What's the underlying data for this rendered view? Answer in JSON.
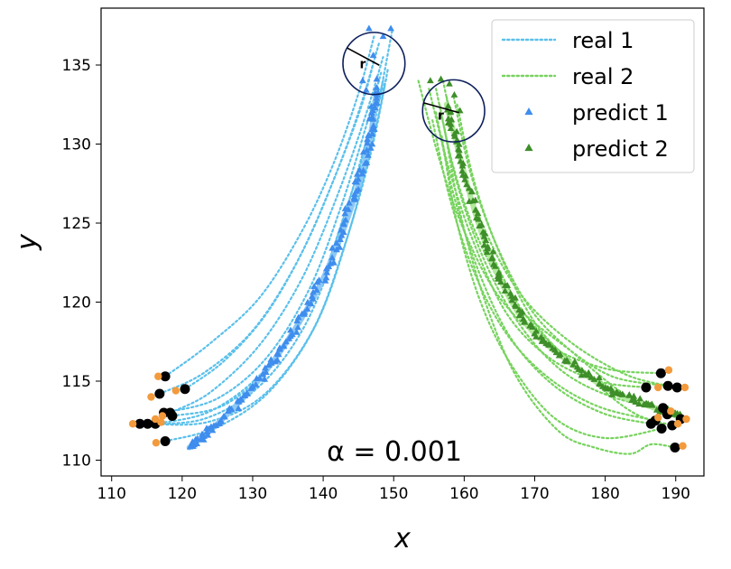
{
  "chart_data": {
    "type": "scatter",
    "title": "",
    "xlabel": "x",
    "ylabel": "y",
    "xlim": [
      108.5,
      194
    ],
    "ylim": [
      109,
      138.6
    ],
    "xticks": [
      110,
      120,
      130,
      140,
      150,
      160,
      170,
      180,
      190
    ],
    "yticks": [
      110,
      115,
      120,
      125,
      130,
      135
    ],
    "grid": false,
    "legend_position": "top-right",
    "annotation": "α = 0.001",
    "radius_label": "r",
    "colors": {
      "real1": "#5bc0eb",
      "real2": "#77d35e",
      "predict1": "#3f8ded",
      "predict2": "#3e8e2a",
      "mean1": "#8ec9f5",
      "mean2": "#b2ea9c",
      "circle": "#0d1f5c",
      "start_point": "#000000",
      "start_offset": "#f39a3c"
    },
    "legend": [
      {
        "label": "real 1",
        "kind": "dotted-line",
        "color": "#5bc0eb"
      },
      {
        "label": "real 2",
        "kind": "dotted-line",
        "color": "#77d35e"
      },
      {
        "label": "predict 1",
        "kind": "triangle",
        "color": "#3f8ded"
      },
      {
        "label": "predict 2",
        "kind": "triangle",
        "color": "#3e8e2a"
      }
    ],
    "circles": [
      {
        "center": [
          147.2,
          135.1
        ],
        "radius": 4.4
      },
      {
        "center": [
          158.5,
          132.1
        ],
        "radius": 4.4
      }
    ],
    "group1": {
      "mean_path": [
        [
          121,
          110.8
        ],
        [
          125,
          112.3
        ],
        [
          130,
          114.6
        ],
        [
          135,
          117.6
        ],
        [
          140,
          121.5
        ],
        [
          144,
          126
        ],
        [
          146.5,
          130
        ],
        [
          147.6,
          133.5
        ]
      ],
      "start_points": [
        [
          117.6,
          115.3
        ],
        [
          120.4,
          114.5
        ],
        [
          116.8,
          114.2
        ],
        [
          118.3,
          113.0
        ],
        [
          117.4,
          113.0
        ],
        [
          118.6,
          112.8
        ],
        [
          116.2,
          112.3
        ],
        [
          114.0,
          112.3
        ],
        [
          115.1,
          112.3
        ],
        [
          117.6,
          111.2
        ]
      ],
      "start_offsets": [
        [
          116.6,
          115.3
        ],
        [
          119.1,
          114.4
        ],
        [
          115.6,
          114.0
        ],
        [
          117.2,
          112.8
        ],
        [
          116.2,
          112.6
        ],
        [
          113.0,
          112.3
        ],
        [
          117.0,
          112.4
        ],
        [
          116.3,
          111.1
        ]
      ],
      "real_paths": [
        [
          [
            117.6,
            115.3
          ],
          [
            124,
            117.4
          ],
          [
            131,
            120.3
          ],
          [
            137,
            124.5
          ],
          [
            141.5,
            128.8
          ],
          [
            145,
            133.2
          ],
          [
            147.2,
            136.8
          ]
        ],
        [
          [
            120.4,
            114.5
          ],
          [
            126,
            116.3
          ],
          [
            132,
            119.3
          ],
          [
            137.5,
            123.6
          ],
          [
            142,
            128.3
          ],
          [
            145.5,
            132.5
          ],
          [
            147.5,
            135.8
          ]
        ],
        [
          [
            116.8,
            114.2
          ],
          [
            123,
            115.5
          ],
          [
            130,
            118.2
          ],
          [
            136,
            122.3
          ],
          [
            141,
            127.2
          ],
          [
            145,
            132
          ],
          [
            148,
            136.5
          ]
        ],
        [
          [
            118.3,
            113.0
          ],
          [
            124,
            114.3
          ],
          [
            131,
            117.3
          ],
          [
            137,
            121.5
          ],
          [
            141.8,
            126.5
          ],
          [
            145.8,
            131.5
          ],
          [
            148.5,
            135.5
          ]
        ],
        [
          [
            117.4,
            113.0
          ],
          [
            125,
            113.9
          ],
          [
            132,
            116.5
          ],
          [
            138,
            120.8
          ],
          [
            142.5,
            126
          ],
          [
            146,
            131
          ],
          [
            148.2,
            134.5
          ]
        ],
        [
          [
            118.6,
            112.8
          ],
          [
            126,
            113.5
          ],
          [
            133,
            116.2
          ],
          [
            139,
            120.6
          ],
          [
            143.2,
            125.8
          ],
          [
            146.5,
            130.5
          ],
          [
            148.5,
            134
          ]
        ],
        [
          [
            116.2,
            112.3
          ],
          [
            124,
            113.1
          ],
          [
            131.5,
            115.6
          ],
          [
            138,
            119.6
          ],
          [
            142.8,
            125.2
          ],
          [
            146.2,
            130.3
          ],
          [
            149,
            134.2
          ]
        ],
        [
          [
            114.0,
            112.3
          ],
          [
            123,
            112.6
          ],
          [
            131,
            114.7
          ],
          [
            137.5,
            118.6
          ],
          [
            142.5,
            124.2
          ],
          [
            146.4,
            129.6
          ],
          [
            149.8,
            137.2
          ]
        ],
        [
          [
            115.1,
            112.3
          ],
          [
            123.5,
            112.4
          ],
          [
            131.5,
            114.1
          ],
          [
            138.5,
            118.2
          ],
          [
            143.2,
            123.8
          ],
          [
            146.8,
            129.5
          ],
          [
            149.2,
            134.8
          ]
        ],
        [
          [
            117.6,
            111.2
          ],
          [
            125,
            112.1
          ],
          [
            132.5,
            114.4
          ],
          [
            139,
            118.6
          ],
          [
            143.5,
            124.2
          ],
          [
            146.8,
            129.8
          ],
          [
            148.8,
            133.8
          ]
        ]
      ]
    },
    "group2": {
      "mean_path": [
        [
          157.5,
          132.5
        ],
        [
          159.5,
          129
        ],
        [
          162,
          125
        ],
        [
          165,
          121.5
        ],
        [
          169,
          118.5
        ],
        [
          174,
          116.5
        ],
        [
          180,
          114.6
        ],
        [
          185,
          113.6
        ],
        [
          190.5,
          112.9
        ]
      ],
      "start_points": [
        [
          187.9,
          115.5
        ],
        [
          188.9,
          114.7
        ],
        [
          190.2,
          114.6
        ],
        [
          185.8,
          114.6
        ],
        [
          188.2,
          113.3
        ],
        [
          188.8,
          112.9
        ],
        [
          190.7,
          112.6
        ],
        [
          187.1,
          112.5
        ],
        [
          186.5,
          112.3
        ],
        [
          189.5,
          112.2
        ],
        [
          188.0,
          112.0
        ],
        [
          189.9,
          110.8
        ]
      ],
      "start_offsets": [
        [
          189.0,
          115.7
        ],
        [
          187.5,
          114.6
        ],
        [
          191.3,
          114.6
        ],
        [
          189.3,
          113.1
        ],
        [
          191.5,
          112.6
        ],
        [
          187.5,
          112.7
        ],
        [
          190.3,
          112.3
        ],
        [
          191.0,
          110.9
        ]
      ],
      "real_paths": [
        [
          [
            153.5,
            134
          ],
          [
            156.5,
            129
          ],
          [
            160,
            124.5
          ],
          [
            165,
            120.3
          ],
          [
            172,
            117.3
          ],
          [
            180,
            115.8
          ],
          [
            187.9,
            115.5
          ]
        ],
        [
          [
            156,
            133.5
          ],
          [
            158.5,
            128.5
          ],
          [
            162,
            124
          ],
          [
            167,
            120
          ],
          [
            174,
            117.3
          ],
          [
            181,
            115.3
          ],
          [
            188.9,
            114.7
          ]
        ],
        [
          [
            157,
            134
          ],
          [
            159.5,
            129
          ],
          [
            163,
            124.5
          ],
          [
            168,
            120.5
          ],
          [
            175,
            117.5
          ],
          [
            183,
            115.4
          ],
          [
            190.2,
            114.6
          ]
        ],
        [
          [
            155,
            133.5
          ],
          [
            158,
            128.2
          ],
          [
            161.5,
            123.6
          ],
          [
            166,
            119.3
          ],
          [
            172,
            116.5
          ],
          [
            179,
            115
          ],
          [
            185.8,
            114.6
          ]
        ],
        [
          [
            156.5,
            132.5
          ],
          [
            159,
            127.5
          ],
          [
            163,
            122.5
          ],
          [
            168,
            118.5
          ],
          [
            174,
            115.6
          ],
          [
            181,
            114
          ],
          [
            188.2,
            113.3
          ]
        ],
        [
          [
            157.5,
            133
          ],
          [
            160,
            128
          ],
          [
            164,
            123
          ],
          [
            169,
            119
          ],
          [
            176,
            116
          ],
          [
            183,
            114
          ],
          [
            188.8,
            112.9
          ]
        ],
        [
          [
            158.5,
            133
          ],
          [
            161,
            128
          ],
          [
            165,
            123.2
          ],
          [
            170,
            119.2
          ],
          [
            177,
            116.2
          ],
          [
            184,
            113.8
          ],
          [
            190.7,
            112.6
          ]
        ],
        [
          [
            155.5,
            131.5
          ],
          [
            158,
            126.5
          ],
          [
            161.5,
            121.8
          ],
          [
            166,
            118
          ],
          [
            172,
            115.2
          ],
          [
            179,
            113.4
          ],
          [
            187.1,
            112.5
          ]
        ],
        [
          [
            156,
            132
          ],
          [
            158.5,
            126.8
          ],
          [
            162,
            122
          ],
          [
            166.5,
            117.8
          ],
          [
            172.5,
            114.8
          ],
          [
            179.5,
            113
          ],
          [
            186.5,
            112.3
          ]
        ],
        [
          [
            159,
            132.5
          ],
          [
            161.5,
            127.5
          ],
          [
            165.5,
            122.6
          ],
          [
            170.5,
            118.4
          ],
          [
            177.5,
            115.3
          ],
          [
            184,
            113
          ],
          [
            189.5,
            112.2
          ]
        ],
        [
          [
            156.8,
            130.5
          ],
          [
            159,
            125
          ],
          [
            162.5,
            119.8
          ],
          [
            167,
            115.8
          ],
          [
            173,
            112.6
          ],
          [
            180,
            111.4
          ],
          [
            188.0,
            112.0
          ]
        ],
        [
          [
            157.2,
            131
          ],
          [
            159.5,
            125.5
          ],
          [
            163,
            120
          ],
          [
            167.5,
            115.2
          ],
          [
            173.5,
            111.8
          ],
          [
            178.5,
            110.8
          ],
          [
            183.5,
            110.4
          ],
          [
            186.5,
            111
          ],
          [
            189.9,
            110.8
          ]
        ]
      ]
    }
  }
}
